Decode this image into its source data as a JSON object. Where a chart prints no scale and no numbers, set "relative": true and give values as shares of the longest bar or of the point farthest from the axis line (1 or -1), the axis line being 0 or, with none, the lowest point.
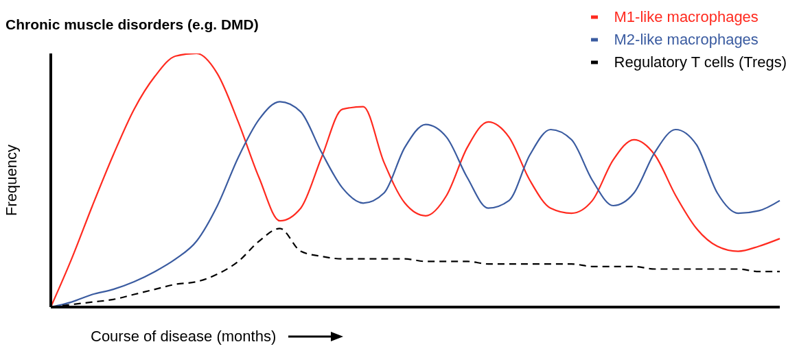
{
  "chart_data": {
    "type": "line",
    "title": "Chronic muscle disorders (e.g. DMD)",
    "xlabel": "Course of disease (months)",
    "ylabel": "Frequency",
    "relative": true,
    "grid": false,
    "legend": "top right",
    "marker": "none",
    "categories": [
      null,
      null,
      null,
      null,
      null,
      null,
      null,
      null,
      null,
      null,
      null,
      null,
      null,
      null,
      null,
      null,
      null,
      null,
      null,
      null,
      null,
      null,
      null,
      null,
      null,
      null,
      null,
      null,
      null,
      null,
      null,
      null,
      null,
      null,
      null,
      null
    ],
    "series": [
      {
        "name": "M1-like macrophages",
        "color": "#ff2a1f",
        "line_style": "solid",
        "values": [
          0,
          0.19,
          0.4,
          0.6,
          0.78,
          0.91,
          0.99,
          1,
          0.92,
          0.73,
          0.51,
          0.34,
          0.39,
          0.59,
          0.78,
          0.79,
          0.57,
          0.41,
          0.36,
          0.44,
          0.63,
          0.73,
          0.67,
          0.5,
          0.39,
          0.37,
          0.42,
          0.58,
          0.66,
          0.6,
          0.44,
          0.31,
          0.24,
          0.22,
          0.24,
          0.27
        ]
      },
      {
        "name": "M2-like macrophages",
        "color": "#3a5ba0",
        "line_style": "solid",
        "values": [
          0,
          0.02,
          0.05,
          0.07,
          0.1,
          0.14,
          0.19,
          0.26,
          0.4,
          0.59,
          0.74,
          0.81,
          0.77,
          0.61,
          0.47,
          0.41,
          0.45,
          0.63,
          0.72,
          0.67,
          0.51,
          0.39,
          0.42,
          0.6,
          0.7,
          0.66,
          0.5,
          0.4,
          0.45,
          0.61,
          0.7,
          0.64,
          0.45,
          0.37,
          0.38,
          0.42
        ]
      },
      {
        "name": "Regulatory T cells (Tregs)",
        "color": "#000000",
        "line_style": "dashed",
        "values": [
          0,
          0.01,
          0.02,
          0.03,
          0.05,
          0.07,
          0.09,
          0.1,
          0.13,
          0.18,
          0.26,
          0.31,
          0.22,
          0.2,
          0.19,
          0.19,
          0.19,
          0.19,
          0.18,
          0.18,
          0.18,
          0.17,
          0.17,
          0.17,
          0.17,
          0.17,
          0.16,
          0.16,
          0.16,
          0.15,
          0.15,
          0.15,
          0.15,
          0.15,
          0.14,
          0.14
        ]
      }
    ]
  }
}
